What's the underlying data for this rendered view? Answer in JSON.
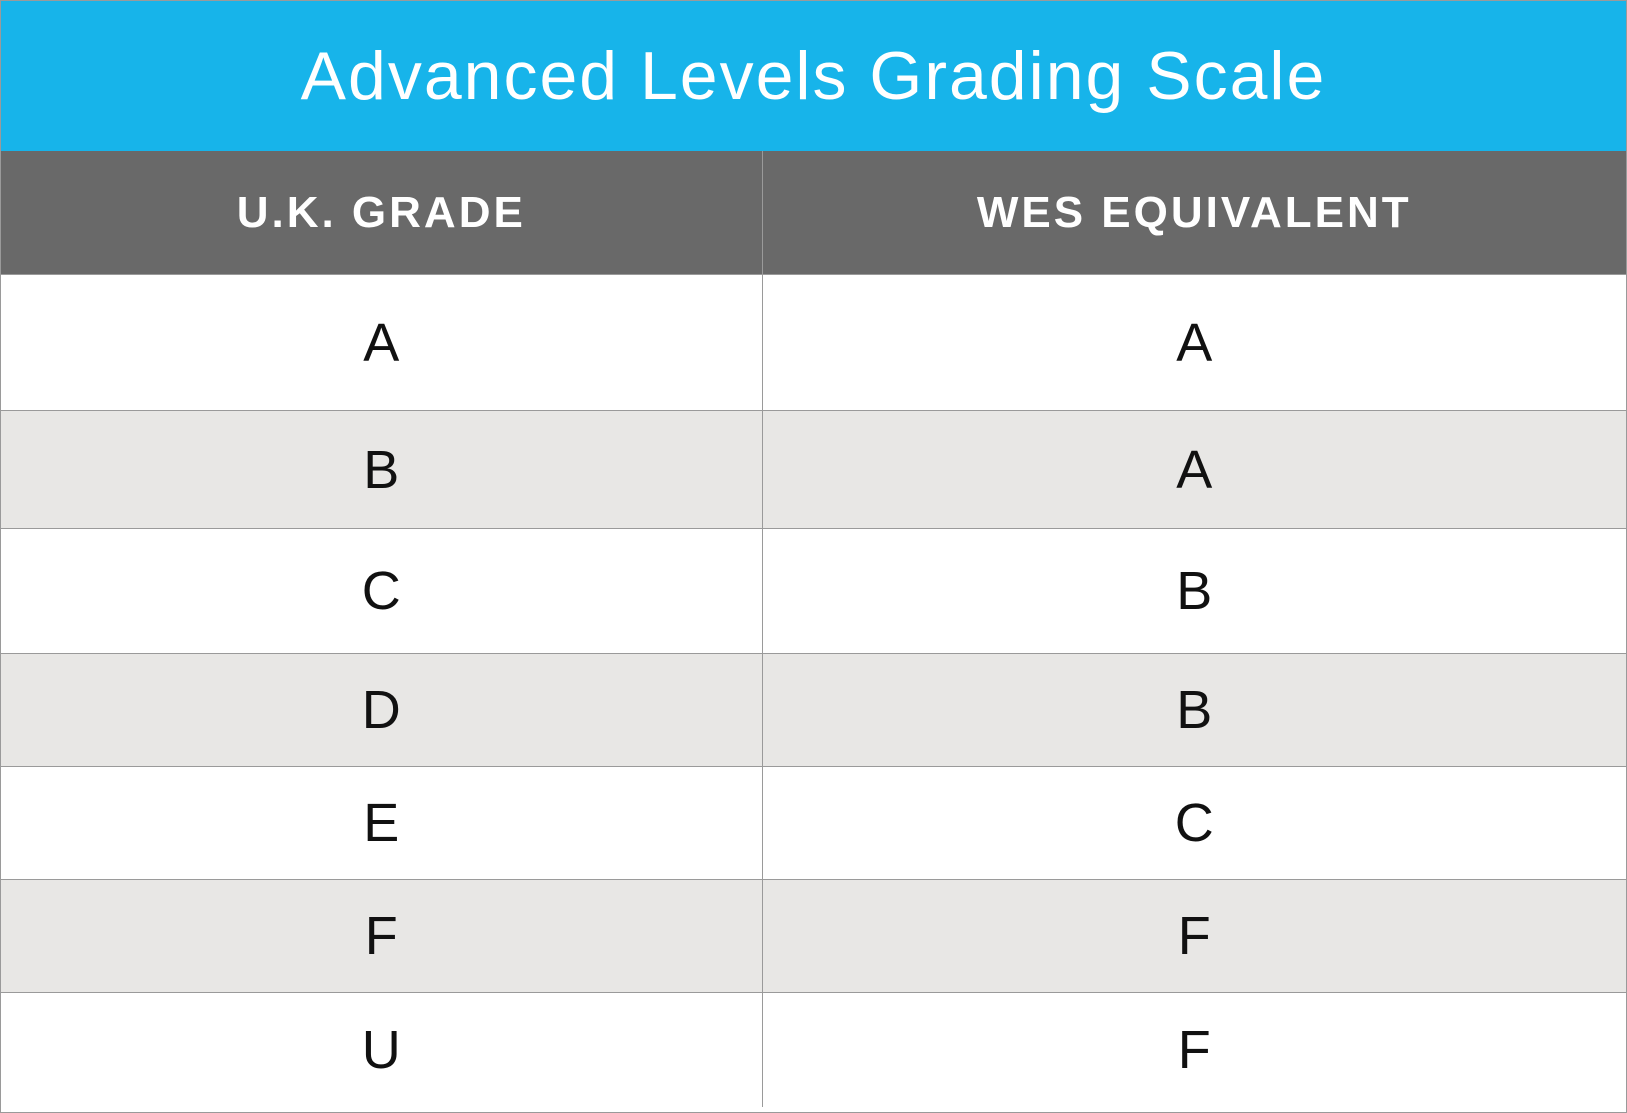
{
  "title": "Advanced Levels Grading Scale",
  "columns": [
    "U.K. GRADE",
    "WES EQUIVALENT"
  ],
  "rows": [
    [
      "A",
      "A"
    ],
    [
      "B",
      "A"
    ],
    [
      "C",
      "B"
    ],
    [
      "D",
      "B"
    ],
    [
      "E",
      "C"
    ],
    [
      "F",
      "F"
    ],
    [
      "U",
      "F"
    ]
  ],
  "colors": {
    "title_bar": "#17b4ea",
    "header_bar": "#696969",
    "shaded_row": "#e8e7e5",
    "plain_row": "#ffffff"
  }
}
